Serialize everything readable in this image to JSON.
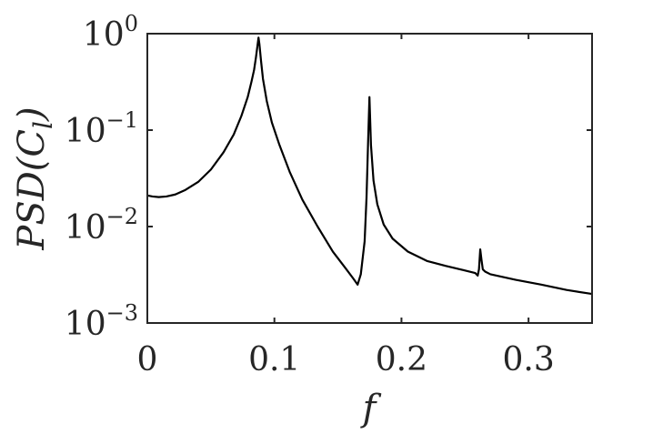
{
  "chart_data": {
    "type": "line",
    "title": "",
    "xlabel": "f",
    "ylabel": {
      "base": "PSD(C",
      "sub": "l",
      "close": ")"
    },
    "xlim": [
      0,
      0.35
    ],
    "ylim": [
      0.001,
      1
    ],
    "y_scale": "log",
    "grid": false,
    "x_ticks": [
      {
        "value": 0,
        "label": "0"
      },
      {
        "value": 0.1,
        "label": "0.1"
      },
      {
        "value": 0.2,
        "label": "0.2"
      },
      {
        "value": 0.3,
        "label": "0.3"
      }
    ],
    "y_ticks": [
      {
        "value": 1,
        "base": "10",
        "exp": "0"
      },
      {
        "value": 0.1,
        "base": "10",
        "exp": "−1"
      },
      {
        "value": 0.01,
        "base": "10",
        "exp": "−2"
      },
      {
        "value": 0.001,
        "base": "10",
        "exp": "−3"
      }
    ],
    "series": [
      {
        "color": "#000000",
        "x": [
          0,
          0.004,
          0.009,
          0.015,
          0.022,
          0.03,
          0.04,
          0.05,
          0.06,
          0.068,
          0.074,
          0.079,
          0.082,
          0.084,
          0.0855,
          0.0865,
          0.0875,
          0.0882,
          0.0895,
          0.091,
          0.094,
          0.098,
          0.104,
          0.112,
          0.122,
          0.134,
          0.146,
          0.156,
          0.162,
          0.1655,
          0.168,
          0.171,
          0.1725,
          0.1738,
          0.1748,
          0.176,
          0.178,
          0.181,
          0.186,
          0.193,
          0.205,
          0.22,
          0.235,
          0.25,
          0.258,
          0.26,
          0.261,
          0.262,
          0.263,
          0.264,
          0.266,
          0.27,
          0.29,
          0.31,
          0.33,
          0.35
        ],
        "y": [
          0.021,
          0.0205,
          0.0202,
          0.0205,
          0.0215,
          0.024,
          0.029,
          0.039,
          0.059,
          0.09,
          0.14,
          0.22,
          0.32,
          0.42,
          0.57,
          0.72,
          0.91,
          0.78,
          0.52,
          0.34,
          0.2,
          0.12,
          0.07,
          0.037,
          0.019,
          0.01,
          0.0055,
          0.0037,
          0.0029,
          0.0025,
          0.0032,
          0.007,
          0.02,
          0.08,
          0.22,
          0.07,
          0.03,
          0.017,
          0.0105,
          0.0075,
          0.0055,
          0.0044,
          0.0039,
          0.0035,
          0.0033,
          0.0031,
          0.0036,
          0.0058,
          0.0045,
          0.0036,
          0.0034,
          0.0032,
          0.0028,
          0.0025,
          0.0022,
          0.002
        ]
      }
    ]
  }
}
